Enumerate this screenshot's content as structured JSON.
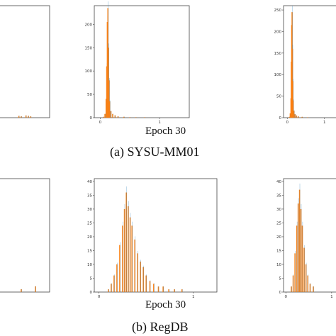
{
  "captions": {
    "top_epoch": "Epoch 30",
    "top_subcaption": "(a) SYSU-MM01",
    "bottom_epoch": "Epoch 30",
    "bottom_subcaption": "(b) RegDB"
  },
  "colors": {
    "series_orange": "#ff7f0e",
    "series_blue": "#1f77b4",
    "frame": "#444444"
  },
  "chart_data": [
    {
      "type": "histogram",
      "panel": "SYSU-MM01 left (cropped)",
      "xlim": [
        0,
        1.2
      ],
      "ylim": [
        0,
        250
      ],
      "yticks": [],
      "xticks": [],
      "bins": [
        {
          "x": 0.55,
          "y": 4
        },
        {
          "x": 0.6,
          "y": 3
        },
        {
          "x": 0.7,
          "y": 5
        },
        {
          "x": 0.75,
          "y": 4
        },
        {
          "x": 0.8,
          "y": 3
        }
      ]
    },
    {
      "type": "histogram",
      "panel": "SYSU-MM01 Epoch 30",
      "xlim": [
        -0.1,
        1.5
      ],
      "ylim": [
        0,
        240
      ],
      "yticks": [
        0,
        50,
        100,
        150,
        200
      ],
      "xticks": [
        0,
        1
      ],
      "bins": [
        {
          "x": 0.06,
          "y": 2
        },
        {
          "x": 0.08,
          "y": 8
        },
        {
          "x": 0.1,
          "y": 40
        },
        {
          "x": 0.11,
          "y": 110
        },
        {
          "x": 0.12,
          "y": 205
        },
        {
          "x": 0.13,
          "y": 235
        },
        {
          "x": 0.14,
          "y": 150
        },
        {
          "x": 0.15,
          "y": 80
        },
        {
          "x": 0.16,
          "y": 35
        },
        {
          "x": 0.18,
          "y": 14
        },
        {
          "x": 0.21,
          "y": 8
        },
        {
          "x": 0.25,
          "y": 5
        },
        {
          "x": 0.3,
          "y": 3
        },
        {
          "x": 0.4,
          "y": 2
        },
        {
          "x": 0.5,
          "y": 1
        },
        {
          "x": 0.6,
          "y": 1
        },
        {
          "x": 0.75,
          "y": 1
        }
      ]
    },
    {
      "type": "histogram",
      "panel": "SYSU-MM01 right (cropped)",
      "xlim": [
        -0.1,
        1.5
      ],
      "ylim": [
        0,
        260
      ],
      "yticks": [
        0,
        50,
        100,
        150,
        200,
        250
      ],
      "xticks": [
        0,
        1
      ],
      "bins": [
        {
          "x": 0.06,
          "y": 2
        },
        {
          "x": 0.08,
          "y": 10
        },
        {
          "x": 0.1,
          "y": 45
        },
        {
          "x": 0.11,
          "y": 130
        },
        {
          "x": 0.12,
          "y": 215
        },
        {
          "x": 0.13,
          "y": 245
        },
        {
          "x": 0.14,
          "y": 160
        },
        {
          "x": 0.15,
          "y": 85
        },
        {
          "x": 0.16,
          "y": 40
        },
        {
          "x": 0.18,
          "y": 16
        },
        {
          "x": 0.21,
          "y": 8
        },
        {
          "x": 0.25,
          "y": 5
        },
        {
          "x": 0.3,
          "y": 3
        },
        {
          "x": 0.4,
          "y": 2
        },
        {
          "x": 0.55,
          "y": 1
        }
      ]
    },
    {
      "type": "histogram",
      "panel": "RegDB left (cropped)",
      "xlim": [
        0,
        1.2
      ],
      "ylim": [
        0,
        40
      ],
      "yticks": [],
      "xticks": [],
      "bins": [
        {
          "x": 0.6,
          "y": 1
        },
        {
          "x": 0.9,
          "y": 2
        }
      ]
    },
    {
      "type": "histogram",
      "panel": "RegDB Epoch 30",
      "xlim": [
        -0.05,
        1.25
      ],
      "ylim": [
        0,
        41
      ],
      "yticks": [
        0,
        5,
        10,
        15,
        20,
        25,
        30,
        35,
        40
      ],
      "xticks": [
        0,
        1
      ],
      "bins": [
        {
          "x": 0.1,
          "y": 1
        },
        {
          "x": 0.13,
          "y": 3
        },
        {
          "x": 0.16,
          "y": 6
        },
        {
          "x": 0.19,
          "y": 10
        },
        {
          "x": 0.22,
          "y": 17
        },
        {
          "x": 0.25,
          "y": 24
        },
        {
          "x": 0.27,
          "y": 30
        },
        {
          "x": 0.29,
          "y": 36
        },
        {
          "x": 0.31,
          "y": 31
        },
        {
          "x": 0.33,
          "y": 27
        },
        {
          "x": 0.35,
          "y": 24
        },
        {
          "x": 0.38,
          "y": 19
        },
        {
          "x": 0.41,
          "y": 14
        },
        {
          "x": 0.44,
          "y": 11
        },
        {
          "x": 0.47,
          "y": 9
        },
        {
          "x": 0.5,
          "y": 6
        },
        {
          "x": 0.54,
          "y": 4
        },
        {
          "x": 0.58,
          "y": 3
        },
        {
          "x": 0.63,
          "y": 2
        },
        {
          "x": 0.68,
          "y": 2
        },
        {
          "x": 0.74,
          "y": 1
        },
        {
          "x": 0.8,
          "y": 1
        },
        {
          "x": 0.88,
          "y": 1
        }
      ]
    },
    {
      "type": "histogram",
      "panel": "RegDB right (cropped)",
      "xlim": [
        -0.05,
        1.25
      ],
      "ylim": [
        0,
        41
      ],
      "yticks": [
        0,
        5,
        10,
        15,
        20,
        25,
        30,
        35,
        40
      ],
      "xticks": [
        0,
        1
      ],
      "bins": [
        {
          "x": 0.12,
          "y": 2
        },
        {
          "x": 0.16,
          "y": 6
        },
        {
          "x": 0.2,
          "y": 14
        },
        {
          "x": 0.24,
          "y": 24
        },
        {
          "x": 0.27,
          "y": 32
        },
        {
          "x": 0.3,
          "y": 37
        },
        {
          "x": 0.33,
          "y": 30
        },
        {
          "x": 0.36,
          "y": 24
        },
        {
          "x": 0.4,
          "y": 16
        },
        {
          "x": 0.44,
          "y": 10
        },
        {
          "x": 0.48,
          "y": 6
        },
        {
          "x": 0.53,
          "y": 3
        },
        {
          "x": 0.6,
          "y": 2
        }
      ]
    }
  ]
}
